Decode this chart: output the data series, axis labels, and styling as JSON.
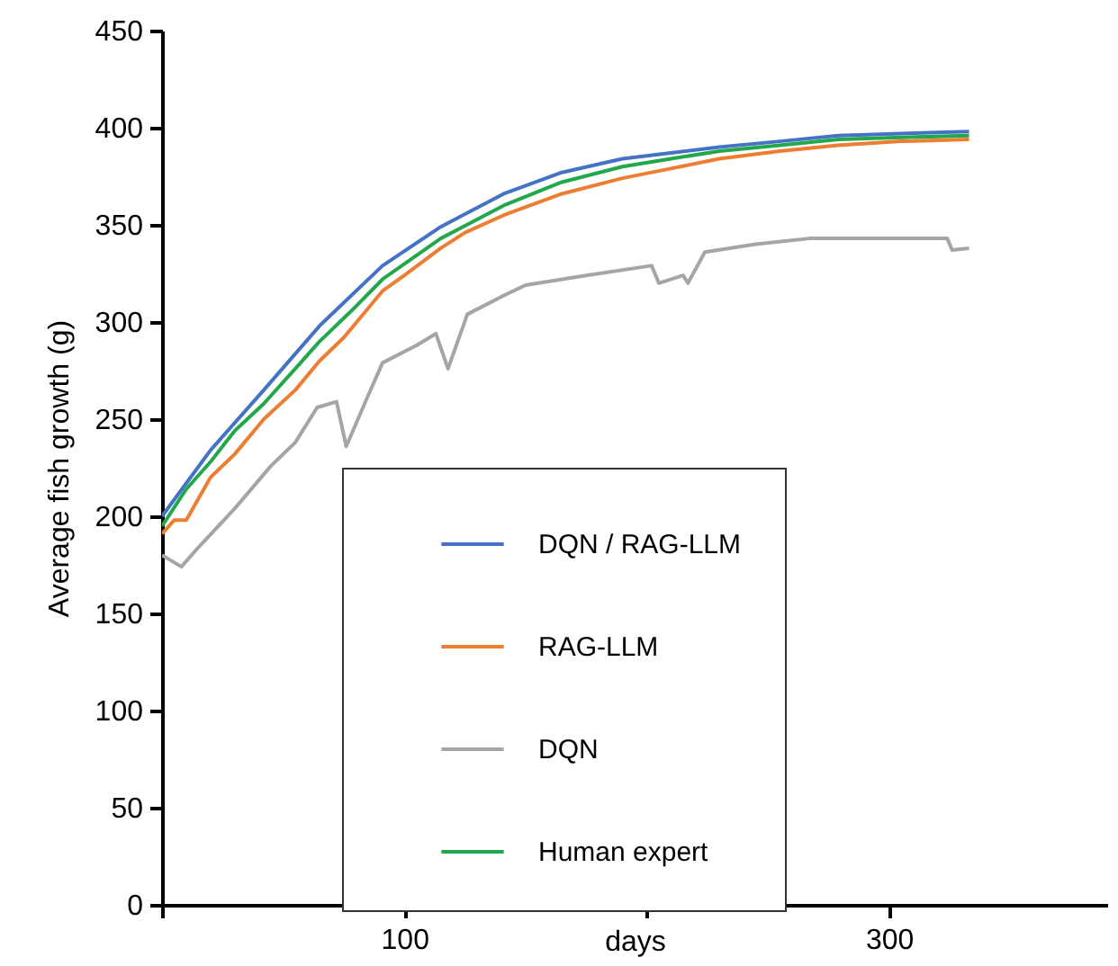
{
  "chart_data": {
    "type": "line",
    "xlabel": "days",
    "ylabel": "Average fish growth (g)",
    "xlim": [
      0,
      390
    ],
    "xticks": [
      {
        "value": 0,
        "label": null
      },
      100,
      {
        "value": 200,
        "label": null
      },
      300
    ],
    "ylim": [
      0,
      450
    ],
    "yticks": [
      0,
      50,
      100,
      150,
      200,
      250,
      300,
      350,
      400,
      450
    ],
    "grid": false,
    "legend": "bottom",
    "marker": "none",
    "line_style": "solid",
    "series": [
      {
        "name": "DQN / RAG-LLM",
        "color": "#4472c4",
        "x": [
          0,
          20,
          42,
          65,
          91,
          115,
          141,
          165,
          190,
          210,
          230,
          255,
          279,
          305,
          333
        ],
        "values": [
          200,
          234,
          265,
          298,
          329,
          349,
          366,
          377,
          384,
          387,
          390,
          393,
          396,
          397,
          398
        ]
      },
      {
        "name": "RAG-LLM",
        "color": "#ed7d31",
        "x": [
          0,
          5,
          10,
          20,
          30,
          42,
          55,
          65,
          75,
          91,
          100,
          115,
          125,
          141,
          165,
          190,
          210,
          230,
          255,
          279,
          305,
          333
        ],
        "values": [
          191,
          198,
          198,
          220,
          232,
          250,
          265,
          280,
          292,
          316,
          324,
          338,
          346,
          355,
          366,
          374,
          379,
          384,
          388,
          391,
          393,
          394
        ]
      },
      {
        "name": "DQN",
        "color": "#a5a5a5",
        "x": [
          0,
          8,
          15,
          30,
          45,
          55,
          64,
          72,
          76,
          85,
          91,
          105,
          113,
          118,
          126,
          140,
          150,
          175,
          202,
          205,
          215,
          217,
          224,
          245,
          267,
          295,
          324,
          326,
          333
        ],
        "values": [
          180,
          174,
          184,
          204,
          226,
          238,
          256,
          259,
          236,
          262,
          279,
          288,
          294,
          276,
          304,
          313,
          319,
          324,
          329,
          320,
          324,
          320,
          336,
          340,
          343,
          343,
          343,
          337,
          338
        ]
      },
      {
        "name": "Human expert",
        "color": "#22a84a",
        "x": [
          0,
          10,
          20,
          30,
          42,
          55,
          65,
          80,
          91,
          115,
          141,
          165,
          190,
          210,
          230,
          255,
          279,
          305,
          333
        ],
        "values": [
          195,
          214,
          228,
          244,
          258,
          276,
          290,
          308,
          322,
          343,
          360,
          372,
          380,
          384,
          388,
          391,
          394,
          395,
          396
        ]
      }
    ]
  }
}
